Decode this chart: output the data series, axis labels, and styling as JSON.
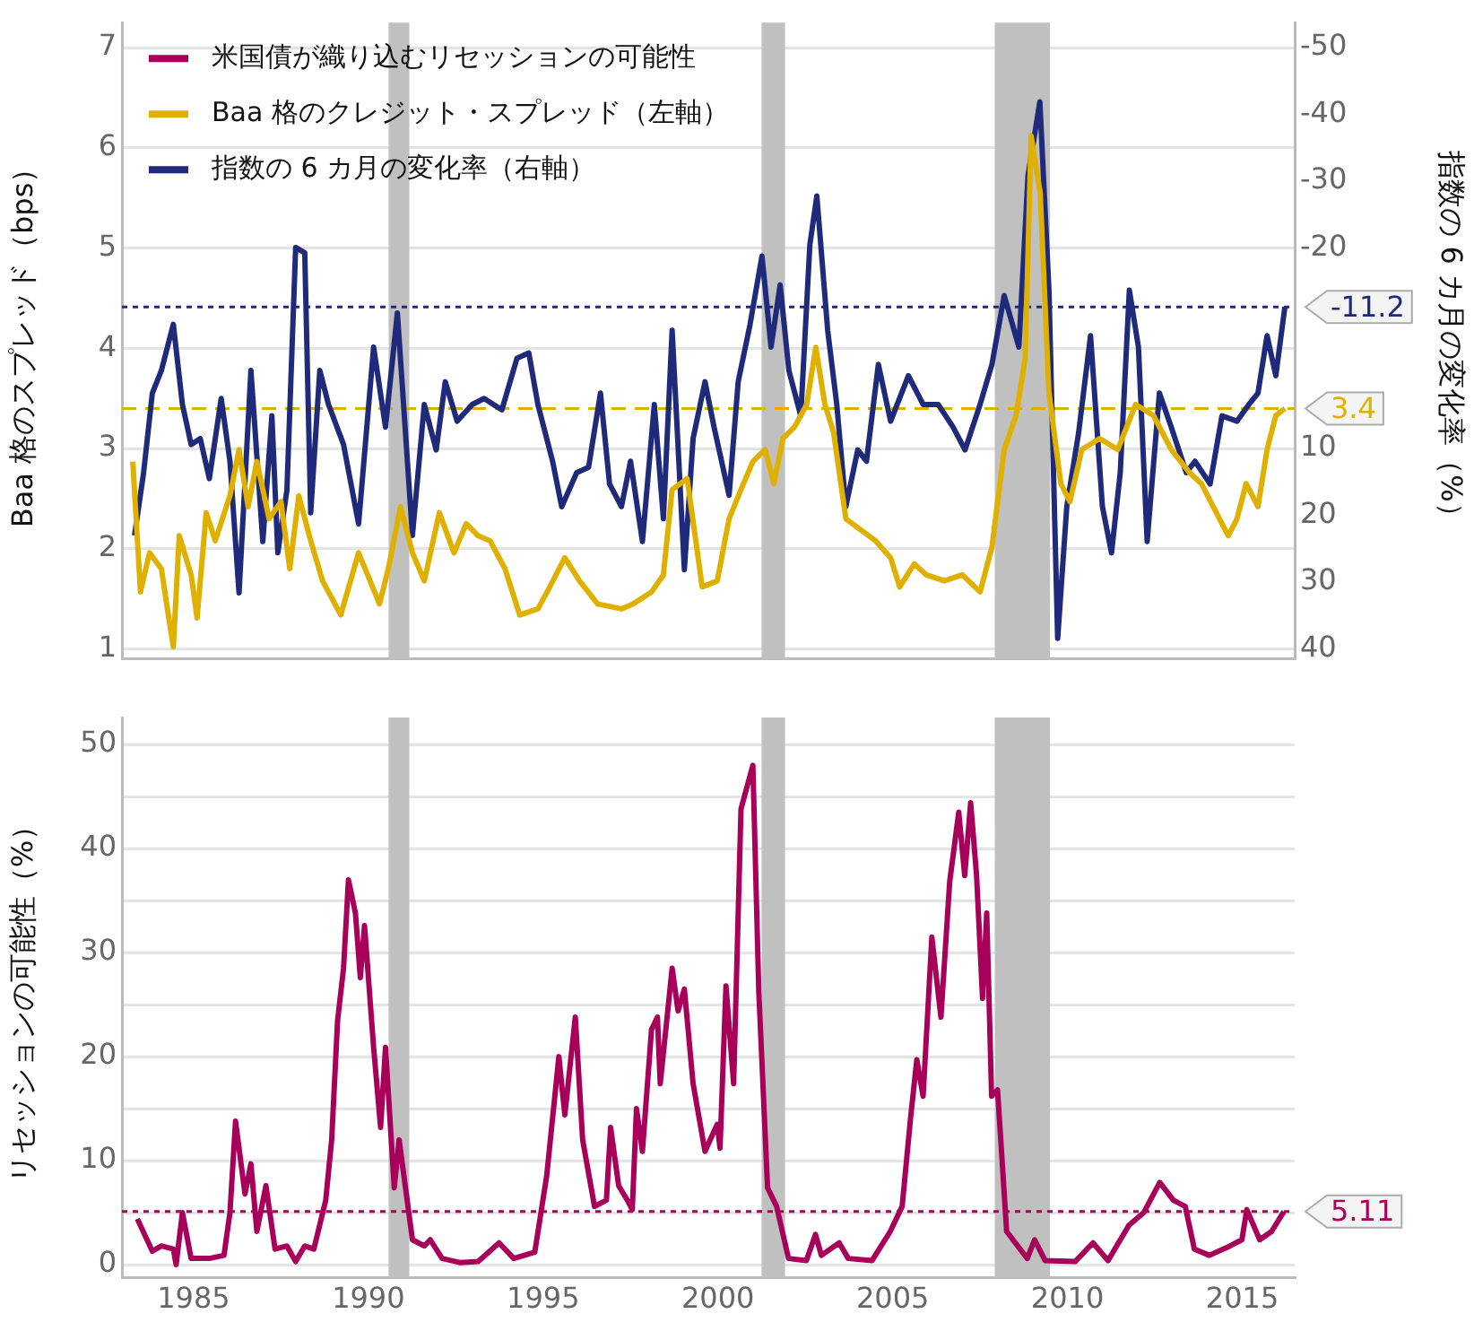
{
  "chart_data": [
    {
      "type": "line",
      "ylabel": "Baa 格のスプレッド（bps）",
      "y2label": "指数の 6 カ月の変化率（%）",
      "xlim": [
        1982.95,
        2016.5
      ],
      "xticks": [
        1985,
        1990,
        1995,
        2000,
        2005,
        2010,
        2015
      ],
      "ylim": [
        0.9,
        7.25
      ],
      "yticks": [
        1,
        2,
        3,
        4,
        5,
        6,
        7
      ],
      "y2lim": [
        41.5,
        -53.75
      ],
      "y2ticks": [
        -50,
        -40,
        -30,
        -20,
        10,
        20,
        30,
        40
      ],
      "tick_labels": "y",
      "grid": "y",
      "legend": "top left",
      "marker": "none",
      "line_style": "solid",
      "bands": [
        {
          "axis": "x",
          "from": 1990.58,
          "to": 1991.17,
          "color": "#c0c0c0"
        },
        {
          "axis": "x",
          "from": 2001.25,
          "to": 2001.92,
          "color": "#c0c0c0"
        },
        {
          "axis": "x",
          "from": 2007.92,
          "to": 2009.5,
          "color": "#c0c0c0"
        }
      ],
      "ref_lines": [
        {
          "axis": "y2",
          "value": -11.2,
          "label": "-11.2",
          "color": "#1f2a7a",
          "line_style": "dotted"
        },
        {
          "axis": "y",
          "value": 3.4,
          "label": "3.4",
          "color": "#e0b000",
          "line_style": "dashed"
        }
      ],
      "series": [
        {
          "name": "Baa 格のクレジット・スプレッド（左軸）",
          "color": "#e0b000",
          "x": [
            1983.26,
            1983.48,
            1983.74,
            1984.08,
            1984.25,
            1984.42,
            1984.59,
            1984.93,
            1985.1,
            1985.36,
            1985.62,
            1986.04,
            1986.3,
            1986.56,
            1986.81,
            1987.16,
            1987.5,
            1987.75,
            1988.01,
            1988.35,
            1988.69,
            1989.21,
            1989.72,
            1990.32,
            1990.57,
            1990.92,
            1991.26,
            1991.6,
            1992.03,
            1992.45,
            1992.8,
            1993.14,
            1993.48,
            1993.91,
            1994.33,
            1994.85,
            1995.19,
            1995.62,
            1996.04,
            1996.56,
            1997.24,
            1997.58,
            1998.1,
            1998.44,
            1998.69,
            1999.12,
            1999.55,
            1999.98,
            2000.32,
            2000.66,
            2001.0,
            2001.35,
            2001.6,
            2001.86,
            2002.2,
            2002.54,
            2002.8,
            2003.06,
            2003.31,
            2003.66,
            2004.08,
            2004.51,
            2004.94,
            2005.2,
            2005.62,
            2005.96,
            2006.48,
            2006.99,
            2007.5,
            2007.84,
            2008.19,
            2008.53,
            2008.79,
            2008.96,
            2009.22,
            2009.47,
            2009.81,
            2010.07,
            2010.41,
            2010.92,
            2011.44,
            2011.95,
            2012.46,
            2012.97,
            2013.49,
            2013.83,
            2014.17,
            2014.6,
            2014.85,
            2015.11,
            2015.45,
            2015.71,
            2015.96,
            2016.22
          ],
          "values": [
            2.87,
            1.57,
            1.96,
            1.8,
            1.4,
            1.02,
            2.13,
            1.74,
            1.31,
            2.36,
            2.08,
            2.53,
            2.99,
            2.42,
            2.87,
            2.3,
            2.47,
            1.8,
            2.53,
            2.08,
            1.68,
            1.34,
            1.96,
            1.45,
            1.8,
            2.42,
            1.96,
            1.68,
            2.36,
            1.96,
            2.25,
            2.13,
            2.08,
            1.8,
            1.34,
            1.4,
            1.62,
            1.91,
            1.68,
            1.45,
            1.4,
            1.45,
            1.57,
            1.74,
            2.59,
            2.7,
            1.62,
            1.68,
            2.3,
            2.59,
            2.87,
            2.99,
            2.65,
            3.1,
            3.22,
            3.44,
            4.01,
            3.44,
            3.16,
            2.3,
            2.19,
            2.08,
            1.91,
            1.62,
            1.85,
            1.74,
            1.68,
            1.74,
            1.57,
            2.02,
            2.99,
            3.33,
            3.9,
            6.12,
            5.55,
            3.56,
            2.65,
            2.47,
            2.99,
            3.1,
            2.99,
            3.44,
            3.33,
            2.99,
            2.76,
            2.65,
            2.42,
            2.13,
            2.3,
            2.65,
            2.42,
            2.99,
            3.33,
            3.4
          ]
        },
        {
          "name": "指数の 6 カ月の変化率（右軸）",
          "color": "#1f2a7a",
          "axis": "y2",
          "x": [
            1983.31,
            1983.57,
            1983.82,
            1984.08,
            1984.42,
            1984.68,
            1984.93,
            1985.19,
            1985.45,
            1985.79,
            1986.04,
            1986.3,
            1986.64,
            1986.98,
            1987.24,
            1987.41,
            1987.67,
            1987.92,
            1988.18,
            1988.35,
            1988.61,
            1988.86,
            1989.29,
            1989.72,
            1990.15,
            1990.49,
            1990.83,
            1991.26,
            1991.6,
            1991.94,
            1992.2,
            1992.54,
            1992.97,
            1993.31,
            1993.82,
            1994.25,
            1994.59,
            1994.85,
            1995.27,
            1995.53,
            1995.96,
            1996.3,
            1996.64,
            1996.9,
            1997.24,
            1997.5,
            1997.84,
            1998.18,
            1998.44,
            1998.69,
            1999.04,
            1999.29,
            1999.63,
            1999.89,
            2000.32,
            2000.58,
            2000.92,
            2001.26,
            2001.52,
            2001.78,
            2002.03,
            2002.37,
            2002.63,
            2002.83,
            2003.14,
            2003.4,
            2003.66,
            2004.0,
            2004.25,
            2004.59,
            2004.94,
            2005.45,
            2005.87,
            2006.3,
            2006.73,
            2007.07,
            2007.5,
            2007.84,
            2008.19,
            2008.61,
            2008.87,
            2009.21,
            2009.47,
            2009.72,
            2009.98,
            2010.32,
            2010.66,
            2011.0,
            2011.26,
            2011.51,
            2011.77,
            2012.03,
            2012.28,
            2012.63,
            2012.97,
            2013.4,
            2013.65,
            2014.08,
            2014.42,
            2014.85,
            2015.19,
            2015.45,
            2015.71,
            2015.96,
            2016.22
          ],
          "values": [
            23,
            13.6,
            1.7,
            -1.7,
            -8.6,
            3.4,
            9.4,
            8.5,
            14.5,
            2.5,
            11.9,
            31.6,
            -1.7,
            23.9,
            5.1,
            25.6,
            16.2,
            -20.1,
            -19.3,
            19.6,
            -1.7,
            3.4,
            9.4,
            21.3,
            -5.2,
            6.8,
            -10.3,
            23,
            3.4,
            10.2,
            0,
            5.9,
            3.4,
            2.5,
            4.2,
            -3.5,
            -4.3,
            3.4,
            11.9,
            18.7,
            13.6,
            12.8,
            1.7,
            15.3,
            18.7,
            11.9,
            23.9,
            3.4,
            20.5,
            -7.7,
            28.1,
            8.5,
            0,
            6.8,
            17,
            0,
            -8.6,
            -18.8,
            -5.2,
            -14.5,
            -1.7,
            5.1,
            -20.5,
            -27.8,
            -7.7,
            3.4,
            18.7,
            10.2,
            11.9,
            -2.6,
            5.9,
            -0.9,
            3.4,
            3.4,
            6.8,
            10.2,
            3.4,
            -2.6,
            -12.9,
            -5.2,
            -30.8,
            -41.9,
            -13.7,
            38.4,
            18.7,
            7.6,
            -6.9,
            18.7,
            25.6,
            13.6,
            -13.7,
            -5.2,
            23.9,
            1.7,
            6.8,
            13.6,
            11.9,
            15.3,
            5.1,
            5.9,
            3.4,
            1.7,
            -6.9,
            -0.9,
            -11.2
          ]
        }
      ]
    },
    {
      "type": "line",
      "ylabel": "リセッションの可能性（%）",
      "xlim": [
        1982.95,
        2016.5
      ],
      "xticks": [
        1985,
        1990,
        1995,
        2000,
        2005,
        2010,
        2015
      ],
      "ylim": [
        -1.2,
        52.6
      ],
      "yticks": [
        0,
        {
          "value": 5,
          "label": null
        },
        10,
        {
          "value": 15,
          "label": null
        },
        20,
        {
          "value": 25,
          "label": null
        },
        30,
        {
          "value": 35,
          "label": null
        },
        40,
        {
          "value": 45,
          "label": null
        },
        50
      ],
      "grid": "y",
      "marker": "none",
      "line_style": "solid",
      "bands": [
        {
          "axis": "x",
          "from": 1990.58,
          "to": 1991.17,
          "color": "#c0c0c0"
        },
        {
          "axis": "x",
          "from": 2001.25,
          "to": 2001.92,
          "color": "#c0c0c0"
        },
        {
          "axis": "x",
          "from": 2007.92,
          "to": 2009.5,
          "color": "#c0c0c0"
        }
      ],
      "ref_lines": [
        {
          "axis": "y",
          "value": 5.11,
          "label": "5.11",
          "color": "#a8005a",
          "line_style": "dotted"
        }
      ],
      "series": [
        {
          "name": "米国債が織り込むリセッションの可能性",
          "color": "#a8005a",
          "x": [
            1983.39,
            1983.82,
            1984.08,
            1984.42,
            1984.5,
            1984.68,
            1984.93,
            1985.45,
            1985.87,
            1986.04,
            1986.2,
            1986.47,
            1986.64,
            1986.81,
            1987.07,
            1987.33,
            1987.67,
            1987.92,
            1988.18,
            1988.44,
            1988.78,
            1988.95,
            1989.12,
            1989.29,
            1989.43,
            1989.63,
            1989.77,
            1989.89,
            1990.15,
            1990.35,
            1990.49,
            1990.74,
            1990.88,
            1991.26,
            1991.6,
            1991.77,
            1992.11,
            1992.63,
            1993.14,
            1993.74,
            1994.16,
            1994.76,
            1995.1,
            1995.45,
            1995.62,
            1995.92,
            1996.13,
            1996.47,
            1996.81,
            1996.93,
            1997.16,
            1997.41,
            1997.55,
            1997.67,
            1997.84,
            1998.1,
            1998.27,
            1998.35,
            1998.69,
            1998.86,
            1999.04,
            1999.29,
            1999.63,
            1999.98,
            2000.06,
            2000.23,
            2000.45,
            2000.66,
            2001.0,
            2001.17,
            2001.42,
            2001.68,
            2002.02,
            2002.53,
            2002.79,
            2002.96,
            2003.47,
            2003.73,
            2004.41,
            2004.93,
            2005.27,
            2005.52,
            2005.69,
            2005.87,
            2006.12,
            2006.38,
            2006.63,
            2006.89,
            2007.06,
            2007.23,
            2007.4,
            2007.57,
            2007.69,
            2007.83,
            2008.0,
            2008.26,
            2008.51,
            2008.85,
            2009.06,
            2009.36,
            2010.22,
            2010.73,
            2011.16,
            2011.76,
            2012.18,
            2012.64,
            2013.03,
            2013.37,
            2013.63,
            2014.06,
            2014.65,
            2014.99,
            2015.13,
            2015.5,
            2015.84,
            2016.19
          ],
          "values": [
            4.4,
            1.3,
            1.8,
            1.5,
            0,
            5,
            0.6,
            0.6,
            0.9,
            5,
            13.8,
            6.8,
            9.7,
            3.2,
            7.6,
            1.5,
            1.8,
            0.3,
            1.8,
            1.5,
            6.2,
            12,
            23.5,
            28.5,
            37,
            33.8,
            27.6,
            32.6,
            20.9,
            13.2,
            20.9,
            7.4,
            12,
            2.4,
            1.8,
            2.4,
            0.6,
            0.2,
            0.3,
            2.1,
            0.6,
            1.2,
            8.5,
            20,
            14.4,
            23.8,
            12,
            5.6,
            6.2,
            13.2,
            7.6,
            6.2,
            5.3,
            15,
            10.9,
            22.6,
            23.8,
            17.4,
            28.5,
            24.4,
            26.5,
            17.4,
            10.9,
            13.5,
            11.2,
            26.8,
            17.4,
            43.8,
            48,
            26.2,
            7.4,
            5.6,
            0.6,
            0.4,
            2.9,
            0.9,
            2.1,
            0.6,
            0.4,
            3.2,
            5.6,
            14.4,
            19.7,
            16.2,
            31.5,
            23.8,
            36.8,
            43.5,
            37.4,
            44.4,
            37.4,
            25.6,
            33.8,
            16.2,
            16.8,
            3.2,
            2.1,
            0.6,
            2.4,
            0.4,
            0.3,
            2.1,
            0.4,
            3.8,
            5,
            7.9,
            6.2,
            5.6,
            1.5,
            0.9,
            1.8,
            2.4,
            5.3,
            2.4,
            3.2,
            5.11
          ]
        }
      ]
    }
  ]
}
